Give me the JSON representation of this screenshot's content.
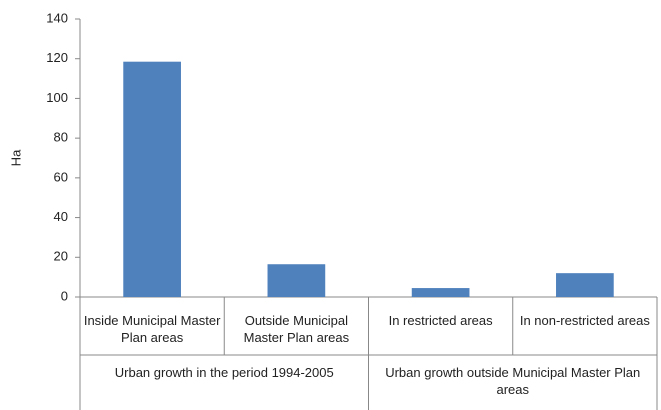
{
  "chart_data": {
    "type": "bar",
    "ylabel": "Ha",
    "categories": [
      "Inside Municipal Master Plan areas",
      "Outside Municipal Master Plan areas",
      "In restricted areas",
      "In non-restricted areas"
    ],
    "values": [
      118.5,
      16.5,
      4.5,
      12
    ],
    "groups": [
      {
        "label": "Urban growth in the period 1994-2005",
        "count": 2
      },
      {
        "label": "Urban growth outside Municipal Master Plan areas",
        "count": 2
      }
    ],
    "color": "#4f81bd",
    "ylim": [
      0,
      140
    ],
    "yticks": [
      0,
      20,
      40,
      60,
      80,
      100,
      120,
      140
    ],
    "grid": false
  }
}
